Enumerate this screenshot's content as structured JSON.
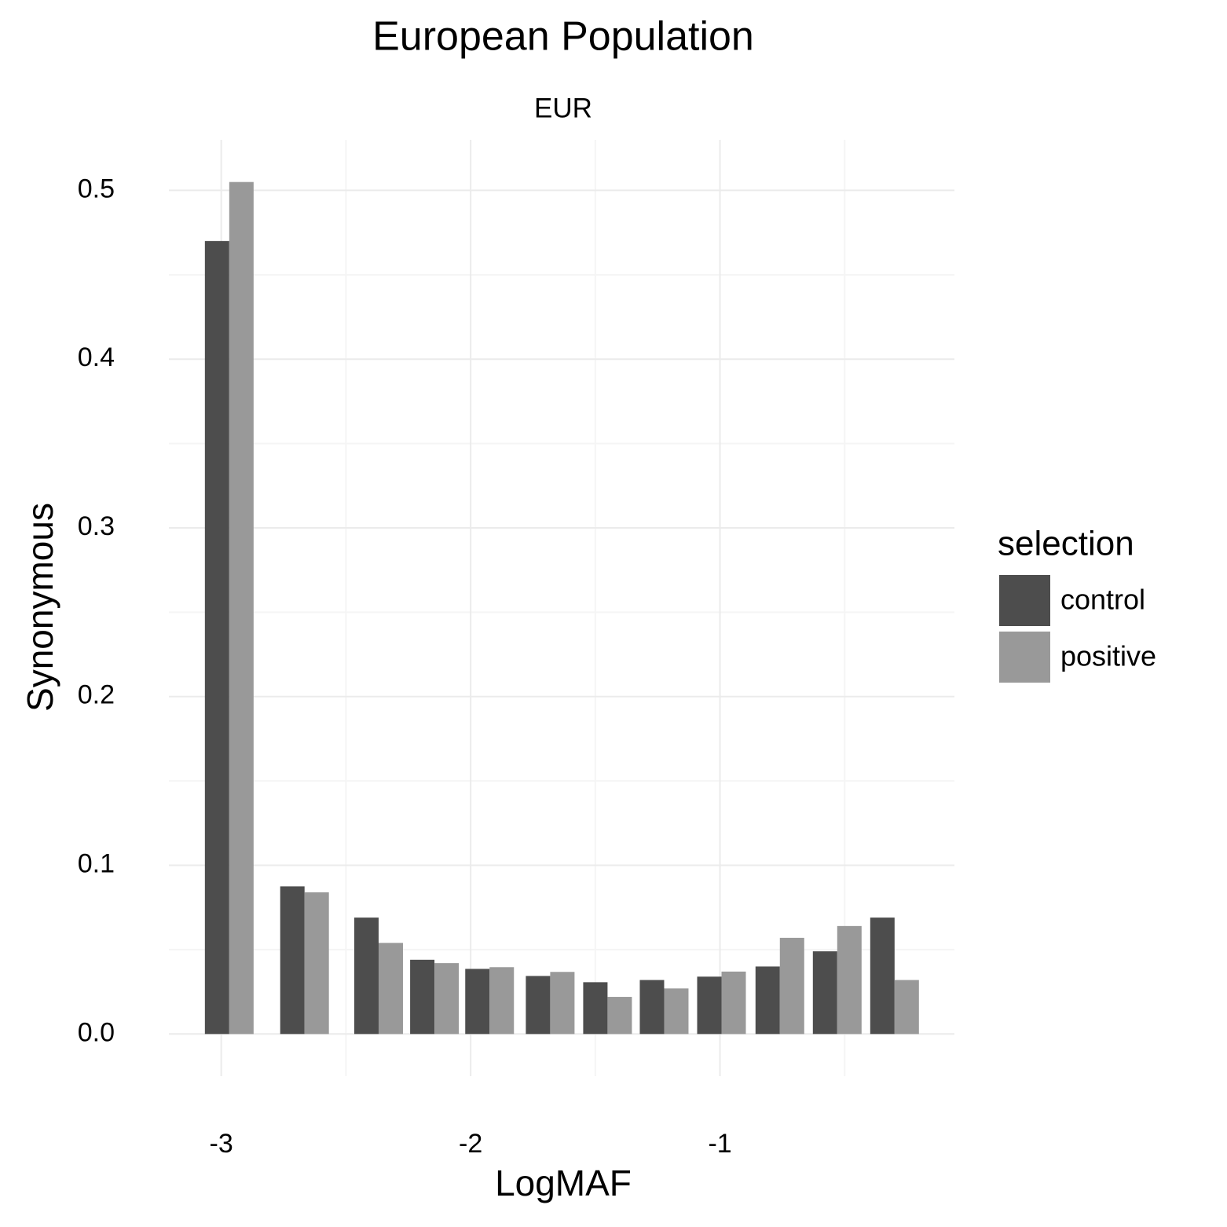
{
  "chart_data": {
    "type": "bar",
    "title": "European Population",
    "subtitle": "EUR",
    "x_label": "LogMAF",
    "y_label": "Synonymous",
    "x": [
      -2.968,
      -2.666,
      -2.369,
      -2.145,
      -1.924,
      -1.681,
      -1.451,
      -1.224,
      -0.994,
      -0.76,
      -0.53,
      -0.3
    ],
    "series": [
      {
        "name": "control",
        "color": "#4d4d4d",
        "values": [
          0.47,
          0.0875,
          0.069,
          0.044,
          0.0386,
          0.0344,
          0.0307,
          0.032,
          0.034,
          0.04,
          0.049,
          0.069
        ]
      },
      {
        "name": "positive",
        "color": "#999999",
        "values": [
          0.505,
          0.084,
          0.054,
          0.042,
          0.0396,
          0.0368,
          0.022,
          0.027,
          0.037,
          0.057,
          0.064,
          0.032
        ]
      }
    ],
    "legend_title": "selection",
    "legend_position": "right",
    "xlim": [
      -3.21,
      -0.06
    ],
    "ylim": [
      -0.025,
      0.53
    ],
    "xticks": [
      -3,
      -2,
      -1
    ],
    "yticks": [
      {
        "value": 0,
        "label": "0.0"
      },
      0.1,
      0.2,
      0.3,
      0.4,
      0.5
    ],
    "x_minor_ticks": [
      -2.5,
      -1.5,
      -0.5
    ],
    "y_minor_ticks": [
      0.05,
      0.15,
      0.25,
      0.35,
      0.45
    ],
    "grid": true
  }
}
